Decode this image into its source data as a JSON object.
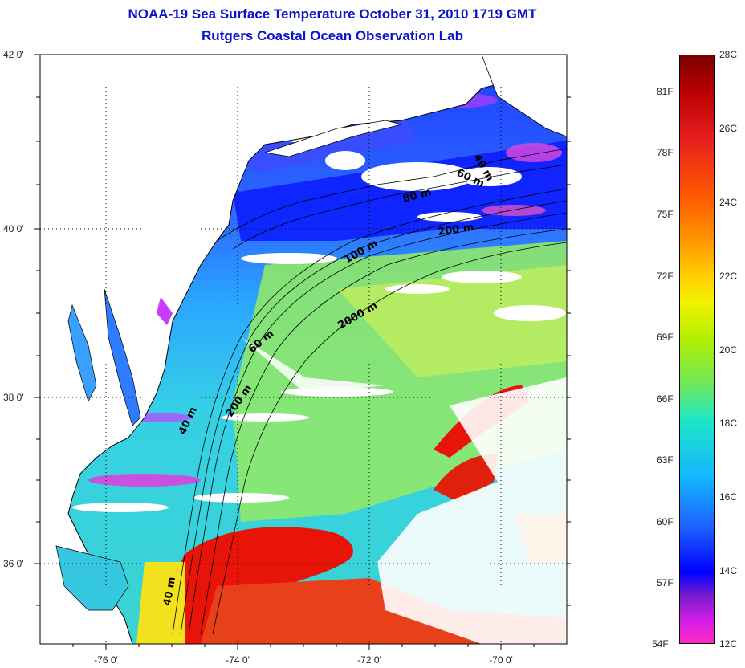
{
  "title_line1": "NOAA-19 Sea Surface Temperature October 31, 2010 1719 GMT",
  "title_line2": "Rutgers Coastal Ocean Observation Lab",
  "map": {
    "lat_ticks": [
      "42 0'",
      "40 0'",
      "38 0'",
      "36 0'"
    ],
    "lon_ticks": [
      "-76 0'",
      "-74 0'",
      "-72 0'",
      "-70 0'"
    ],
    "depth_labels": [
      "40 m",
      "60 m",
      "80 m",
      "200 m",
      "100 m",
      "2000 m",
      "60 m",
      "200 m",
      "40 m",
      "40 m"
    ]
  },
  "colorbar": {
    "celsius": [
      "28C",
      "26C",
      "24C",
      "22C",
      "20C",
      "18C",
      "16C",
      "14C",
      "12C"
    ],
    "fahrenheit": [
      "81F",
      "78F",
      "75F",
      "72F",
      "69F",
      "66F",
      "63F",
      "60F",
      "57F",
      "54F"
    ]
  },
  "colors": {
    "title": "#0a14c8",
    "land": "#ffffff",
    "cloud": "#ffffff"
  }
}
